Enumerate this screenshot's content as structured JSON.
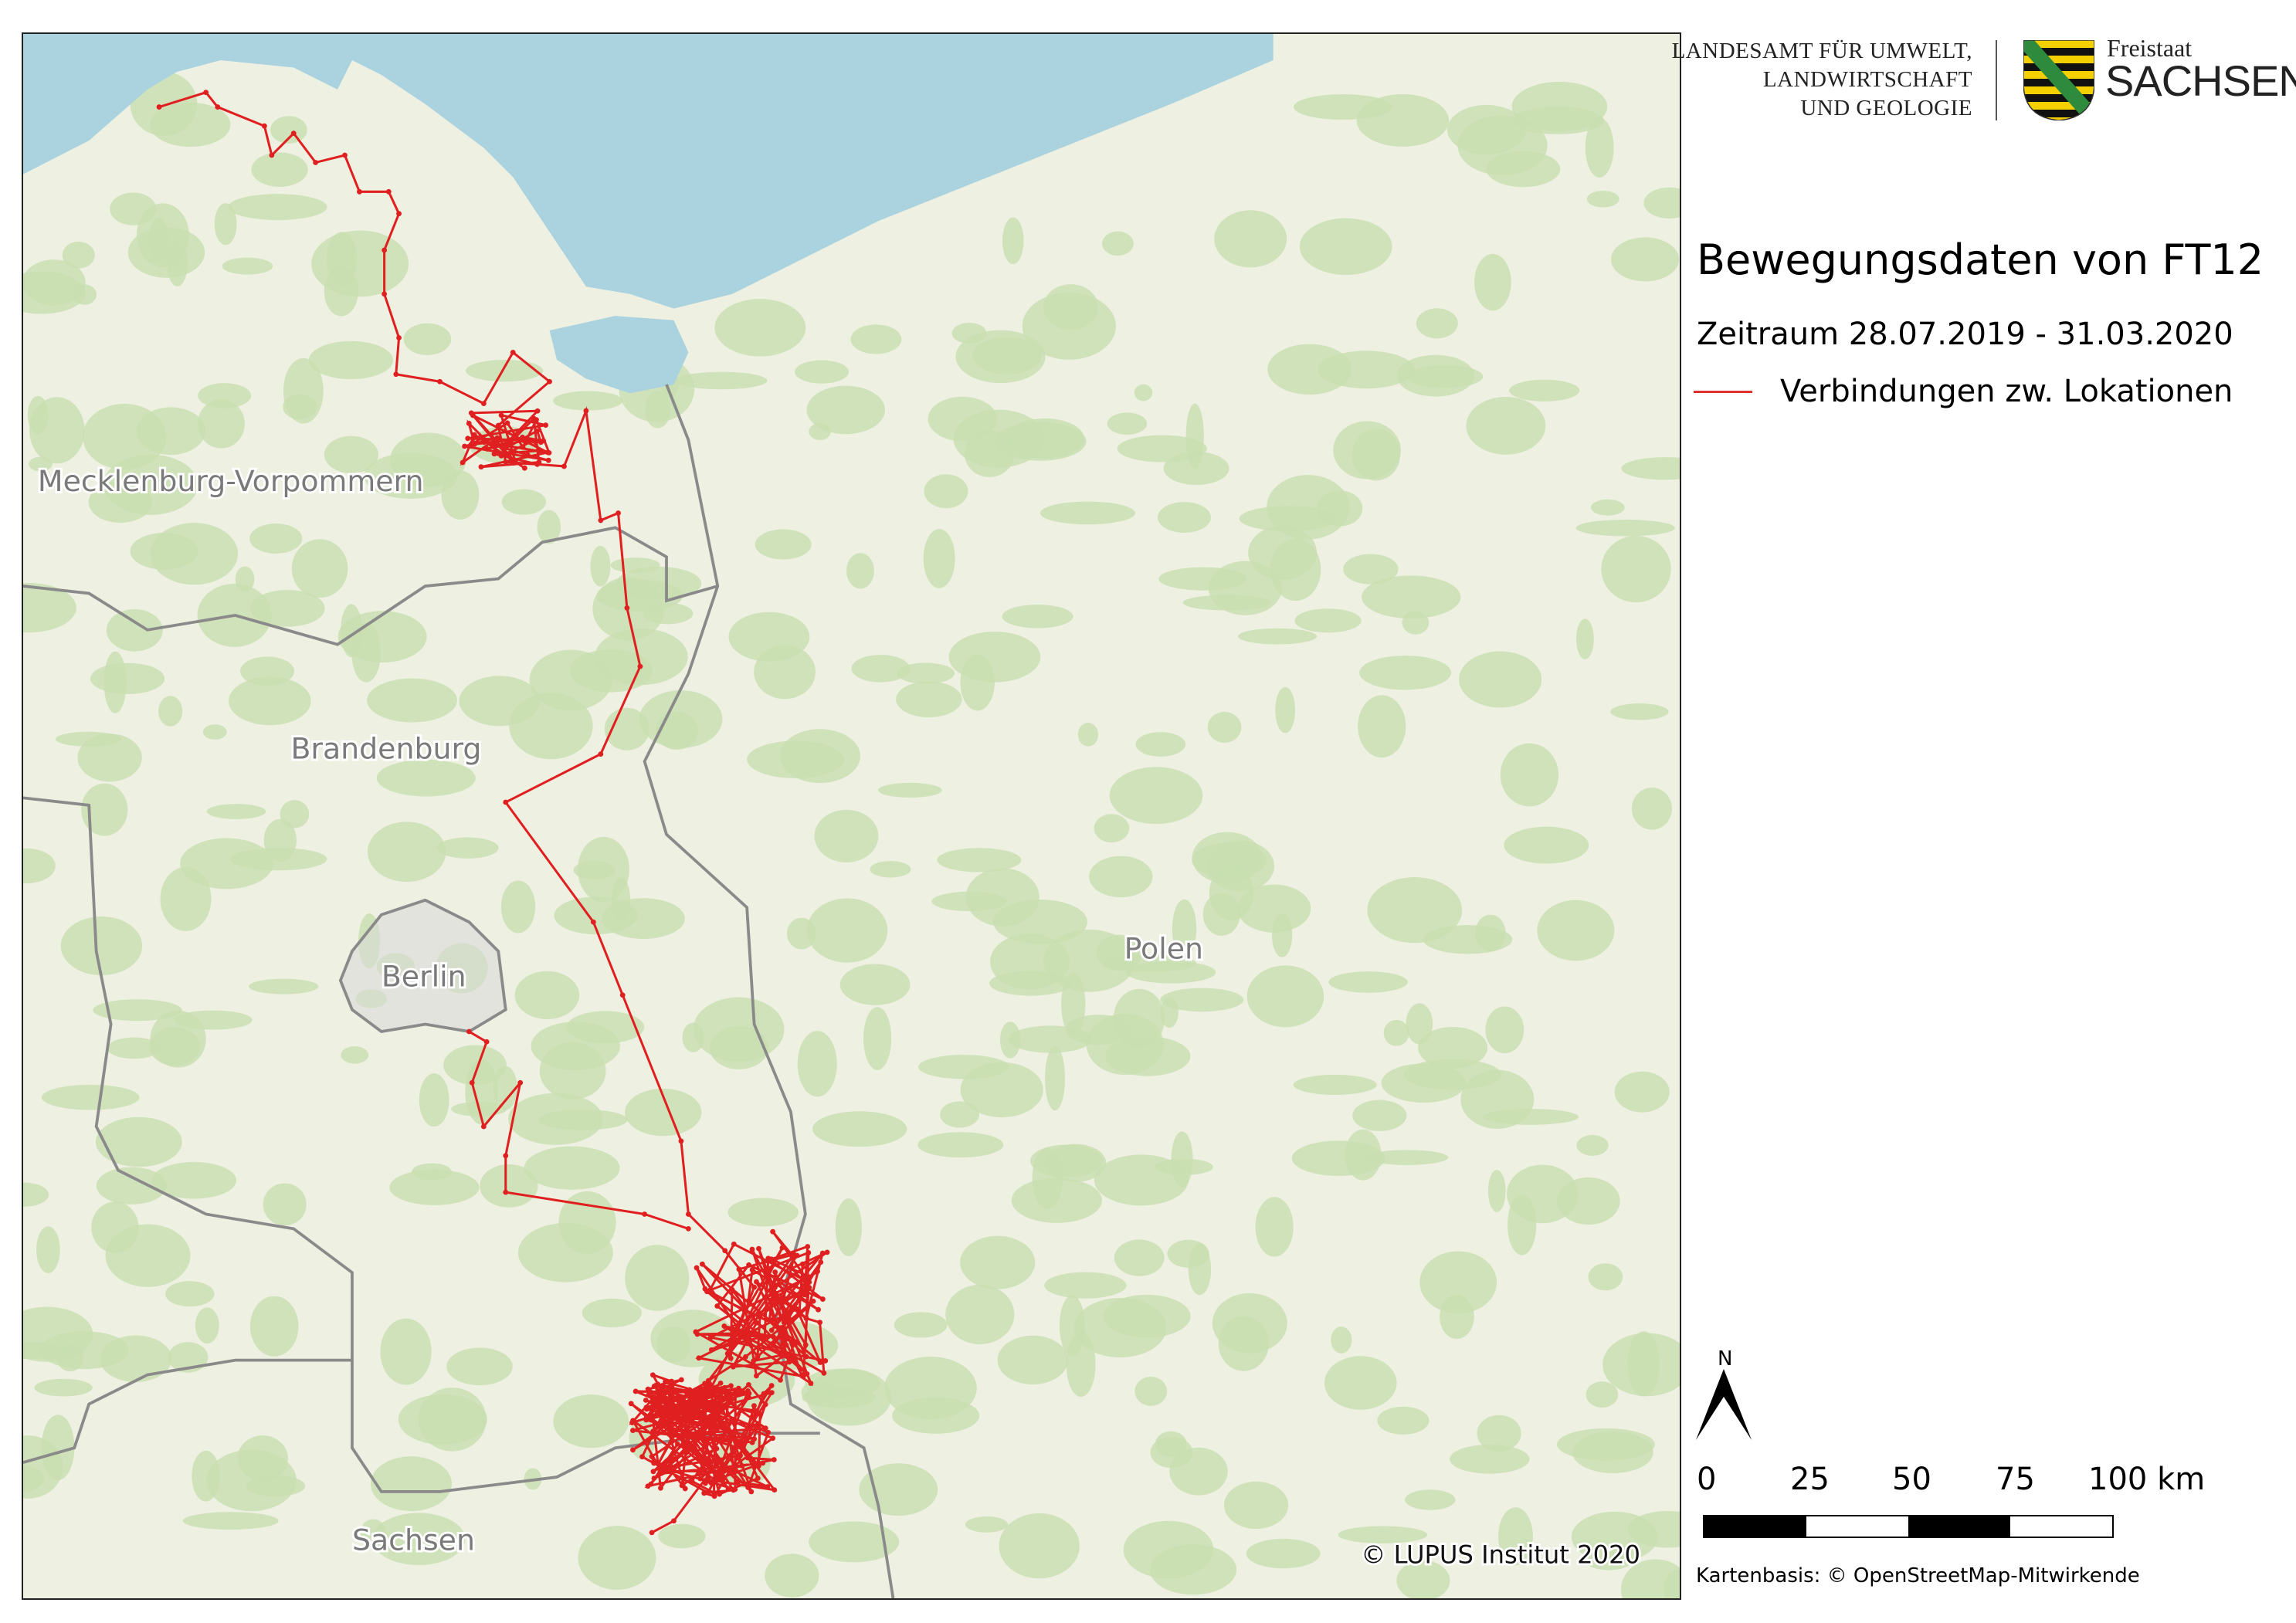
{
  "header": {
    "agency_lines": [
      "LANDESAMT FÜR UMWELT,",
      "LANDWIRTSCHAFT",
      "UND GEOLOGIE"
    ],
    "state_logo_small": "Freistaat",
    "state_logo_large": "SACHSEN"
  },
  "title": "Bewegungsdaten von FT12",
  "period": "Zeitraum 28.07.2019 - 31.03.2020",
  "legend": {
    "label": "Verbindungen zw. Lokationen",
    "color": "#e03030"
  },
  "map": {
    "labels": {
      "mv": "Mecklenburg-Vorpommern",
      "brandenburg": "Brandenburg",
      "berlin": "Berlin",
      "polen": "Polen",
      "sachsen": "Sachsen"
    },
    "copyright": "© LUPUS Institut 2020",
    "colors": {
      "sea": "#aad3df",
      "land": "#eef0e2",
      "forest": "#c8dfb0",
      "border": "#8a8a8a",
      "track": "#e02020"
    }
  },
  "north_arrow": {
    "label": "N"
  },
  "scale_bar": {
    "ticks": [
      "0",
      "25",
      "50",
      "75",
      "100 km"
    ]
  },
  "credit": "Kartenbasis: © OpenStreetMap-Mitwirkende"
}
